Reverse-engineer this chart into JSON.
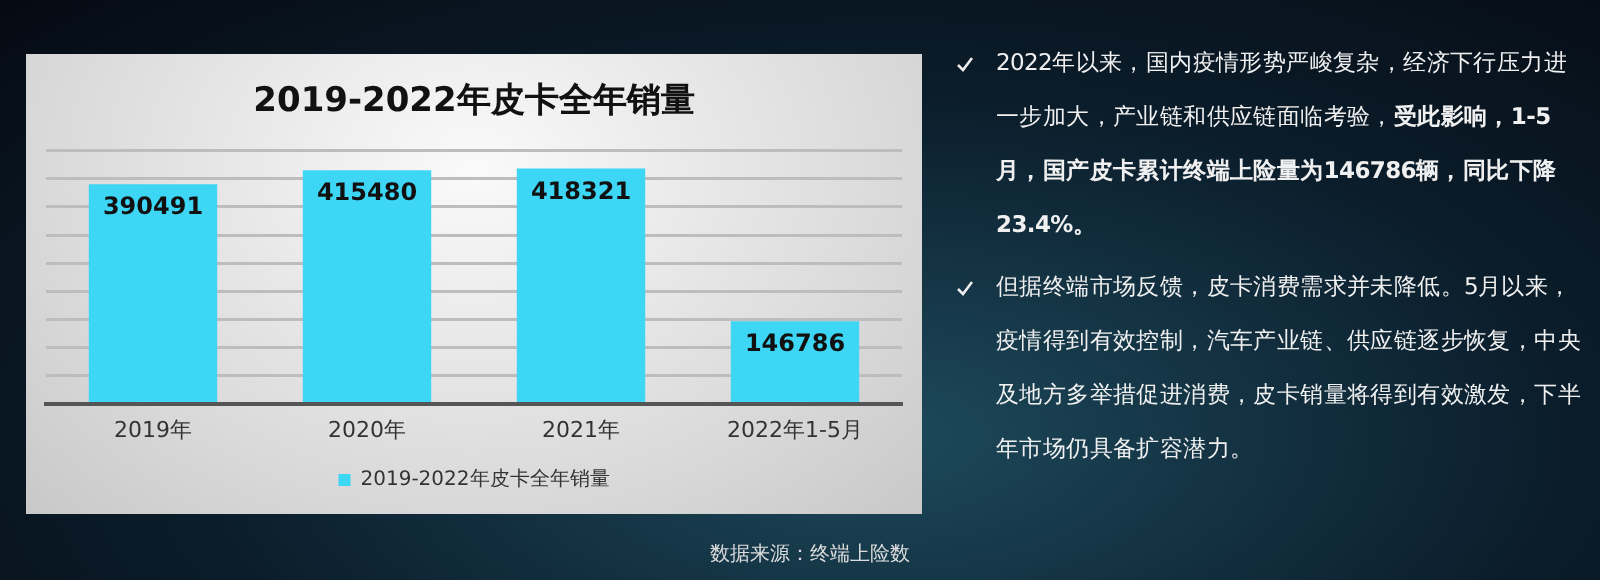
{
  "chart_data": {
    "type": "bar",
    "title": "2019-2022年皮卡全年销量",
    "categories": [
      "2019年",
      "2020年",
      "2021年",
      "2022年1-5月"
    ],
    "series": [
      {
        "name": "2019-2022年皮卡全年销量",
        "color": "#3dd6f5",
        "values": [
          390491,
          415480,
          418321,
          146786
        ]
      }
    ],
    "ylim": [
      0,
      450000
    ],
    "yticks": [
      {
        "value": 0,
        "label": null
      },
      {
        "value": 50000,
        "label": null
      },
      {
        "value": 100000,
        "label": null
      },
      {
        "value": 150000,
        "label": null
      },
      {
        "value": 200000,
        "label": null
      },
      {
        "value": 250000,
        "label": null
      },
      {
        "value": 300000,
        "label": null
      },
      {
        "value": 350000,
        "label": null
      },
      {
        "value": 400000,
        "label": null
      },
      {
        "value": 450000,
        "label": null
      }
    ],
    "grid": "y",
    "tick_labels": "x",
    "legend": "bottom",
    "data_labels": true,
    "annotations": [
      "2022年以来，国内疫情形势严峻复杂，经济下行压力进一步加大，产业链和供应链面临考验，",
      "受此影响，1-5月，国产皮卡累计终端上险量为146786辆，同比下降23.4%。",
      "但据终端市场反馈，皮卡消费需求并未降低。5月以来，疫情得到有效控制，汽车产业链、供应链逐步恢复，中央及地方多举措促进消费，皮卡销量将得到有效激发，下半年市场仍具备扩容潜力。",
      "数据来源：终端上险数"
    ]
  }
}
